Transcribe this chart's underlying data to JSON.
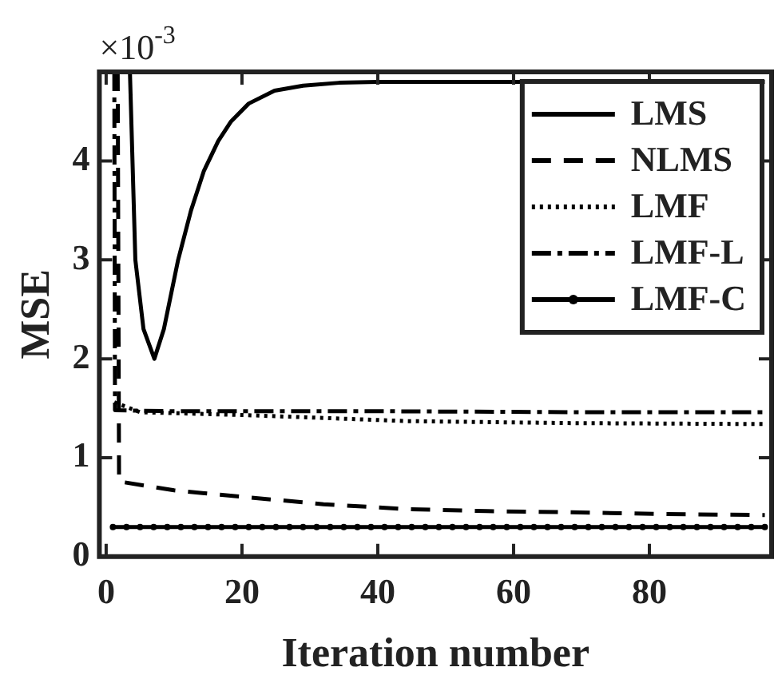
{
  "chart_data": {
    "type": "line",
    "xlabel": "Iteration number",
    "ylabel": "MSE",
    "annotations": [
      "×10$^{-3}$"
    ],
    "xlim": [
      -1,
      98
    ],
    "xticks": [
      0,
      20,
      40,
      60,
      80
    ],
    "ylim": [
      0,
      4.9
    ],
    "yticks": [
      0,
      1,
      2,
      3,
      4
    ],
    "grid": false,
    "legend": "top right",
    "series": [
      {
        "name": "LMS",
        "color": "#000000",
        "line_style": "solid",
        "marker": "none",
        "x": [
          3.5,
          4.3,
          5.5,
          7.1,
          8.5,
          10.6,
          12.5,
          14.4,
          16.5,
          18.4,
          21,
          24.8,
          29,
          34.3,
          40,
          50,
          70,
          97
        ],
        "values": [
          4.9,
          3.0,
          2.3,
          2.0,
          2.3,
          3.0,
          3.5,
          3.9,
          4.2,
          4.4,
          4.58,
          4.71,
          4.76,
          4.79,
          4.8,
          4.8,
          4.8,
          4.8
        ]
      },
      {
        "name": "NLMS",
        "color": "#000000",
        "line_style": "dashed",
        "marker": "none",
        "x": [
          1.7,
          1.9,
          10,
          20.8,
          32,
          44.4,
          56,
          68,
          82,
          97
        ],
        "values": [
          4.9,
          0.76,
          0.67,
          0.6,
          0.53,
          0.48,
          0.46,
          0.45,
          0.43,
          0.42
        ]
      },
      {
        "name": "LMF",
        "color": "#000000",
        "line_style": "dotted",
        "marker": "none",
        "x": [
          1.2,
          5,
          20.8,
          44.4,
          68,
          97
        ],
        "values": [
          1.56,
          1.46,
          1.43,
          1.37,
          1.35,
          1.34
        ]
      },
      {
        "name": "LMF-L",
        "color": "#000000",
        "line_style": "dashdot",
        "marker": "none",
        "x": [
          1.2,
          1.3,
          10,
          40,
          70,
          97
        ],
        "values": [
          4.9,
          1.48,
          1.47,
          1.47,
          1.46,
          1.46
        ]
      },
      {
        "name": "LMF-C",
        "color": "#000000",
        "line_style": "solid",
        "marker": "circle",
        "x": [
          1,
          3,
          5,
          7,
          9,
          11,
          13,
          15,
          17,
          19,
          21,
          23,
          25,
          27,
          29,
          31,
          33,
          35,
          37,
          39,
          41,
          43,
          45,
          47,
          49,
          51,
          53,
          55,
          57,
          59,
          61,
          63,
          65,
          67,
          69,
          71,
          73,
          75,
          77,
          79,
          81,
          83,
          85,
          87,
          89,
          91,
          93,
          95,
          97
        ],
        "values": [
          0.3,
          0.3,
          0.3,
          0.3,
          0.3,
          0.3,
          0.3,
          0.3,
          0.3,
          0.3,
          0.3,
          0.3,
          0.3,
          0.3,
          0.3,
          0.3,
          0.3,
          0.3,
          0.3,
          0.3,
          0.3,
          0.3,
          0.3,
          0.3,
          0.3,
          0.3,
          0.3,
          0.3,
          0.3,
          0.3,
          0.3,
          0.3,
          0.3,
          0.3,
          0.3,
          0.3,
          0.3,
          0.3,
          0.3,
          0.3,
          0.3,
          0.3,
          0.3,
          0.3,
          0.3,
          0.3,
          0.3,
          0.3,
          0.3
        ]
      }
    ]
  }
}
